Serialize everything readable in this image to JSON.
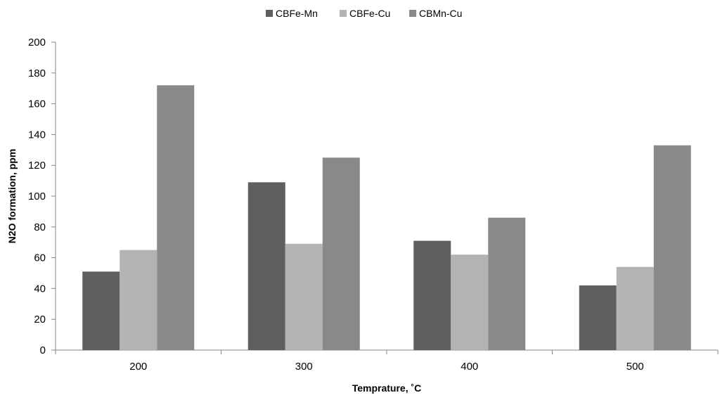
{
  "chart_data": {
    "type": "bar",
    "title": "",
    "xlabel": "Temprature, ˚C",
    "ylabel": "N2O formation, ppm",
    "categories": [
      "200",
      "300",
      "400",
      "500"
    ],
    "series": [
      {
        "name": "CBFe-Mn",
        "color": "#5f5f5f",
        "values": [
          51,
          109,
          71,
          42
        ]
      },
      {
        "name": "CBFe-Cu",
        "color": "#b3b3b3",
        "values": [
          65,
          69,
          62,
          54
        ]
      },
      {
        "name": "CBMn-Cu",
        "color": "#898989",
        "values": [
          172,
          125,
          86,
          133
        ]
      }
    ],
    "ylim": [
      0,
      200
    ],
    "yticks": [
      0,
      20,
      40,
      60,
      80,
      100,
      120,
      140,
      160,
      180,
      200
    ],
    "grid": false,
    "legend_position": "top"
  }
}
